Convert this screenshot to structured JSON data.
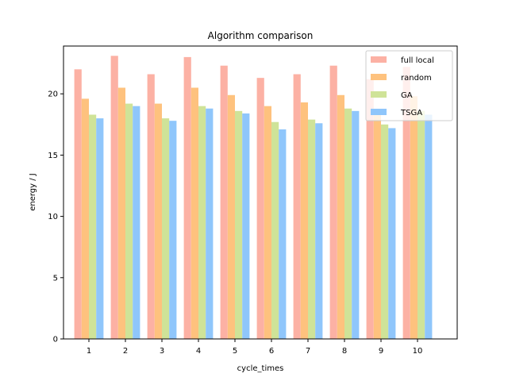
{
  "chart_data": {
    "type": "bar",
    "title": "Algorithm comparison",
    "xlabel": "cycle_times",
    "ylabel": "energy / J",
    "categories": [
      "1",
      "2",
      "3",
      "4",
      "5",
      "6",
      "7",
      "8",
      "9",
      "10"
    ],
    "ylim": [
      0,
      23.9
    ],
    "yticks": [
      0,
      5,
      10,
      15,
      20
    ],
    "grid": false,
    "legend_position": "top-right",
    "series": [
      {
        "name": "full local",
        "color": "#fcb1a4",
        "values": [
          22.0,
          23.1,
          21.6,
          23.0,
          22.3,
          21.3,
          21.6,
          22.3,
          21.2,
          22.2
        ]
      },
      {
        "name": "random",
        "color": "#fec27e",
        "values": [
          19.6,
          20.5,
          19.2,
          20.5,
          19.9,
          19.0,
          19.3,
          19.9,
          18.5,
          19.8
        ]
      },
      {
        "name": "GA",
        "color": "#cfe398",
        "values": [
          18.3,
          19.2,
          18.0,
          19.0,
          18.6,
          17.7,
          17.9,
          18.8,
          17.5,
          18.6
        ]
      },
      {
        "name": "TSGA",
        "color": "#8fc6fb",
        "values": [
          18.0,
          19.0,
          17.8,
          18.8,
          18.4,
          17.1,
          17.6,
          18.6,
          17.2,
          18.3
        ]
      }
    ]
  }
}
